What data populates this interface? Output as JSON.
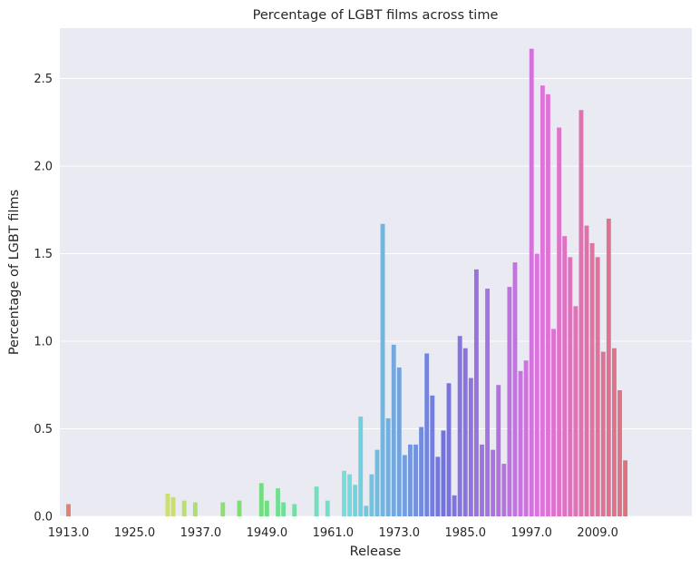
{
  "chart_data": {
    "type": "bar",
    "title": "Percentage of LGBT films across time",
    "xlabel": "Release",
    "ylabel": "Percentage of LGBT films",
    "ylim": [
      0,
      2.8
    ],
    "yticks": [
      0.0,
      0.5,
      1.0,
      1.5,
      2.0,
      2.5
    ],
    "ytick_labels": [
      "0.0",
      "0.5",
      "1.0",
      "1.5",
      "2.0",
      "2.5"
    ],
    "xticks": [
      1913,
      1925,
      1937,
      1949,
      1961,
      1973,
      1985,
      1997,
      2009
    ],
    "xtick_labels": [
      "1913.0",
      "1925.0",
      "1937.0",
      "1949.0",
      "1961.0",
      "1973.0",
      "1985.0",
      "1997.0",
      "2009.0"
    ],
    "grid": true,
    "background": "#eaeaf2",
    "x": [
      1913,
      1914,
      1915,
      1916,
      1917,
      1918,
      1919,
      1920,
      1921,
      1922,
      1923,
      1924,
      1925,
      1926,
      1927,
      1928,
      1929,
      1930,
      1931,
      1932,
      1933,
      1934,
      1935,
      1936,
      1937,
      1938,
      1939,
      1940,
      1941,
      1942,
      1943,
      1944,
      1945,
      1946,
      1947,
      1948,
      1949,
      1950,
      1951,
      1952,
      1953,
      1954,
      1955,
      1956,
      1957,
      1958,
      1959,
      1960,
      1961,
      1962,
      1963,
      1964,
      1965,
      1966,
      1967,
      1968,
      1969,
      1970,
      1971,
      1972,
      1973,
      1974,
      1975,
      1976,
      1977,
      1978,
      1979,
      1980,
      1981,
      1982,
      1983,
      1984,
      1985,
      1986,
      1987,
      1988,
      1989,
      1990,
      1991,
      1992,
      1993,
      1994,
      1995,
      1996,
      1997,
      1998,
      1999,
      2000,
      2001,
      2002,
      2003,
      2004,
      2005,
      2006,
      2007,
      2008,
      2009,
      2010,
      2011,
      2012,
      2013,
      2014
    ],
    "values": [
      0.07,
      0,
      0,
      0,
      0,
      0,
      0,
      0,
      0,
      0,
      0,
      0,
      0,
      0,
      0,
      0,
      0,
      0,
      0.13,
      0.11,
      0,
      0.09,
      0,
      0.08,
      0,
      0,
      0,
      0,
      0.08,
      0,
      0,
      0.09,
      0,
      0,
      0,
      0.19,
      0.09,
      0,
      0.16,
      0.08,
      0,
      0.07,
      0,
      0,
      0,
      0.17,
      0,
      0.09,
      0,
      0,
      0.26,
      0.24,
      0.18,
      0.57,
      0.06,
      0.24,
      0.38,
      1.67,
      0.56,
      0.98,
      0.85,
      0.35,
      0.41,
      0.41,
      0.51,
      0.93,
      0.69,
      0.34,
      0.49,
      0.76,
      0.12,
      1.03,
      0.96,
      0.79,
      1.41,
      0.41,
      1.3,
      0.38,
      0.75,
      0.3,
      1.31,
      1.45,
      0.83,
      0.89,
      2.67,
      1.5,
      2.46,
      2.41,
      1.07,
      2.22,
      1.6,
      1.48,
      1.2,
      2.32,
      1.66,
      1.56,
      1.48,
      0.94,
      1.7,
      0.96,
      0.72,
      0.32
    ]
  }
}
